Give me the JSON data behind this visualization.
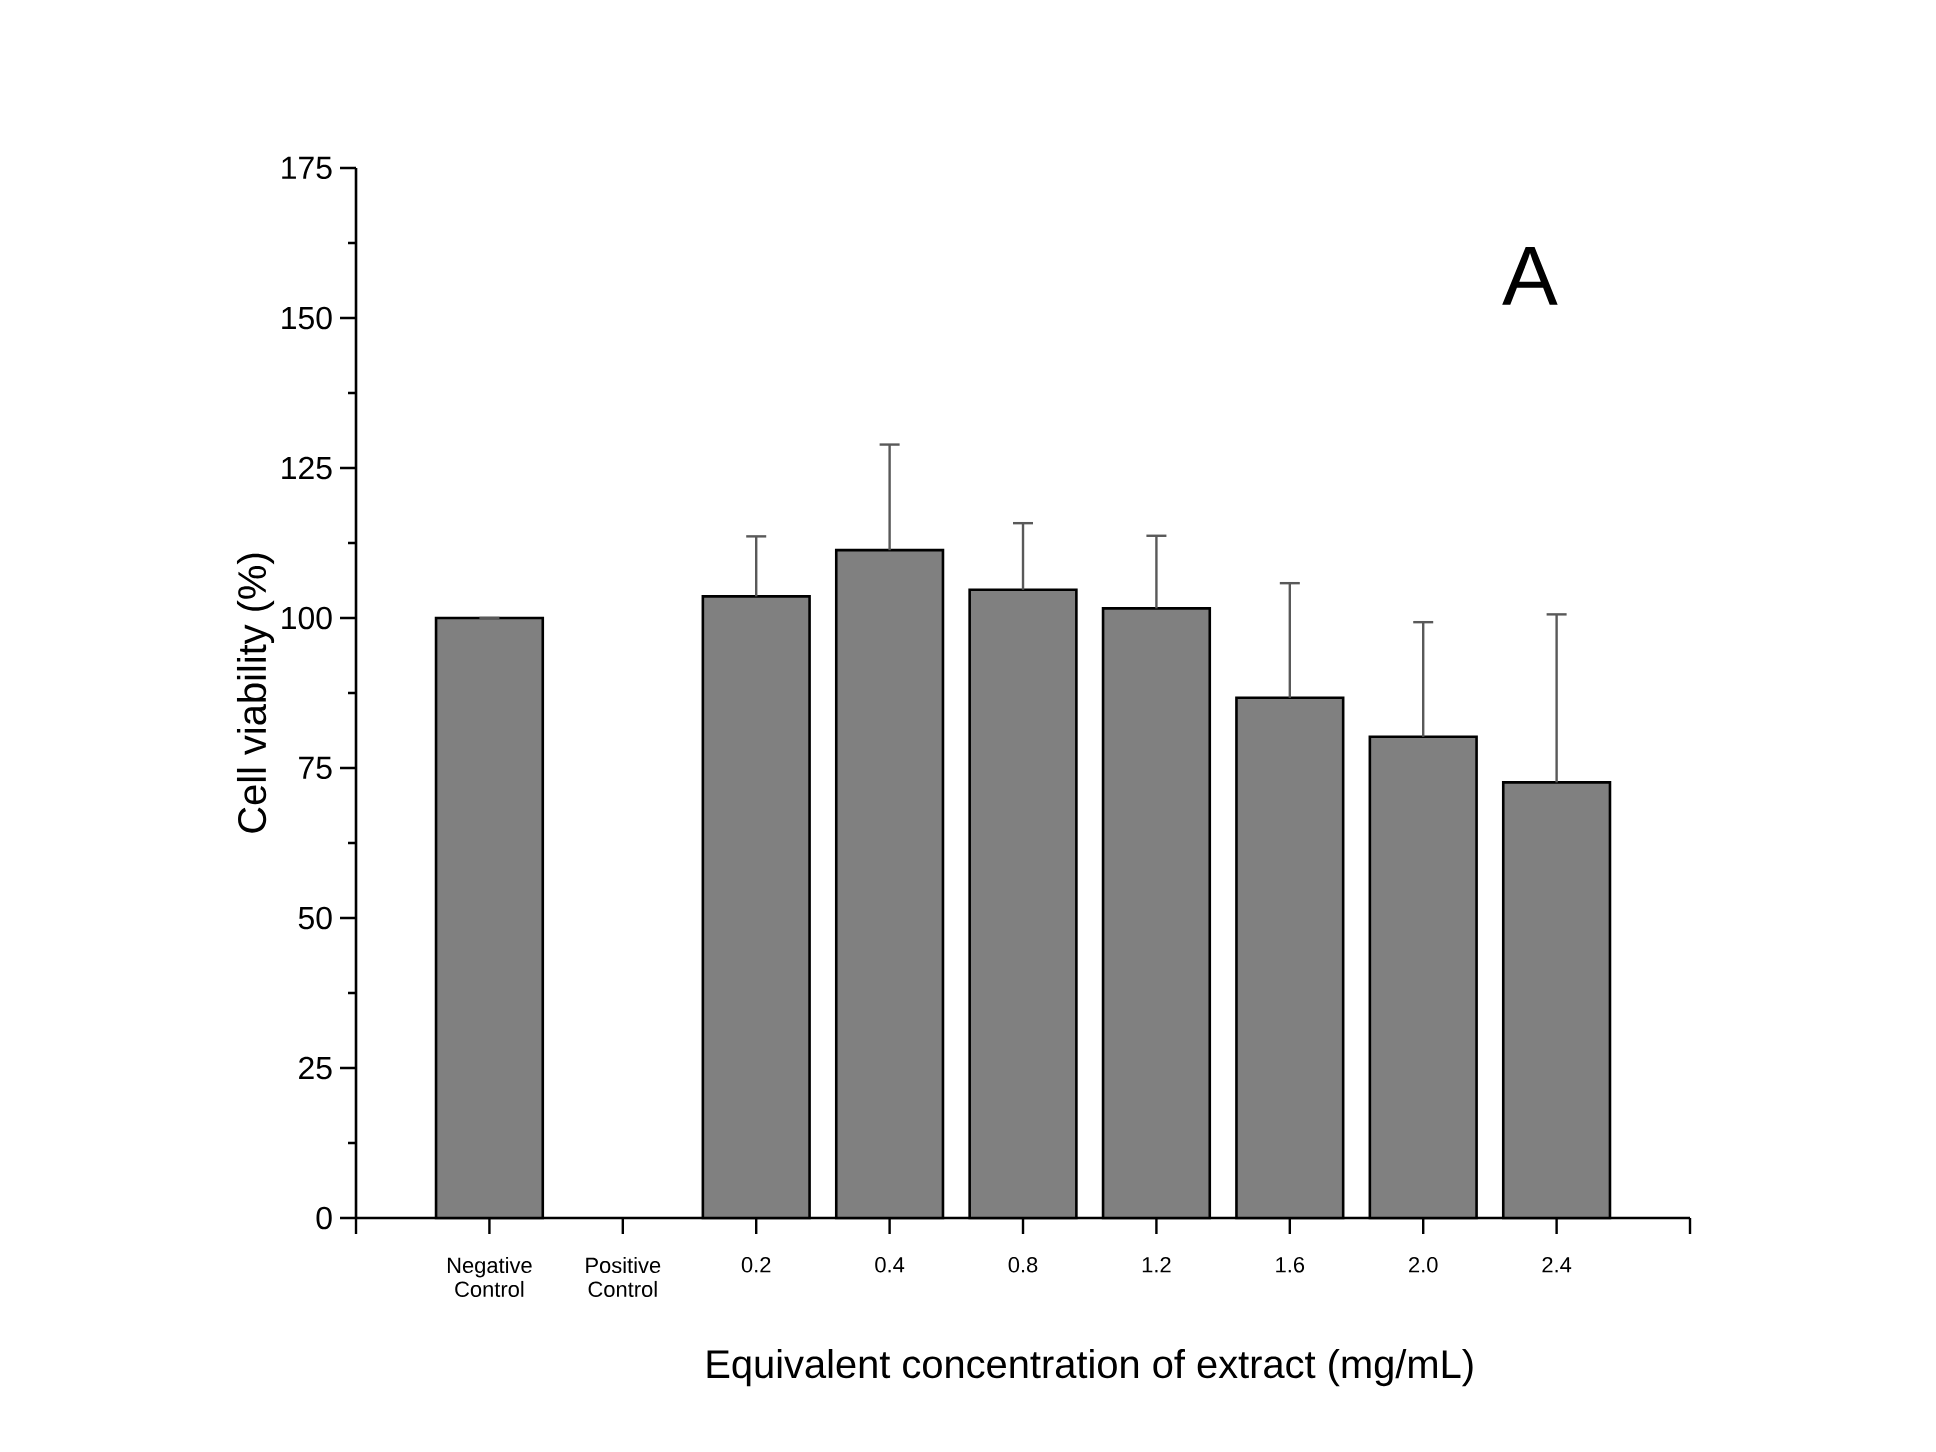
{
  "chart_data": {
    "type": "bar",
    "title": "A",
    "xlabel": "Equivalent concentration of extract (mg/mL)",
    "ylabel": "Cell viability (%)",
    "categories": [
      "Negative Control",
      "Positive Control",
      "0.2",
      "0.4",
      "0.8",
      "1.2",
      "1.6",
      "2.0",
      "2.4"
    ],
    "values": [
      100,
      null,
      103.6,
      111.3,
      104.7,
      101.6,
      86.7,
      80.2,
      72.6
    ],
    "errors": [
      null,
      null,
      10.0,
      17.6,
      11.1,
      12.1,
      19.1,
      19.1,
      28.0
    ],
    "color": "#808080",
    "ylim": [
      0,
      175
    ],
    "yticks": [
      0,
      25,
      50,
      75,
      100,
      125,
      150,
      175
    ],
    "grid": false
  }
}
